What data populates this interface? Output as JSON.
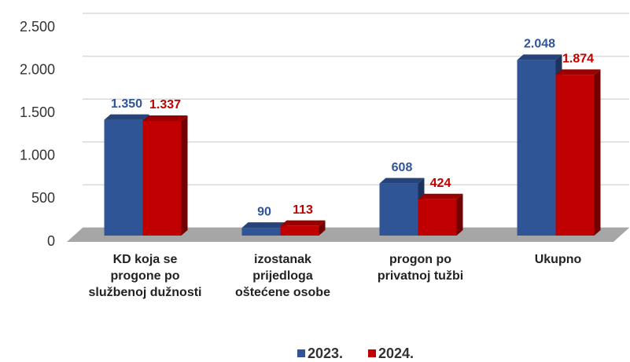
{
  "chart_data": {
    "type": "bar",
    "categories": [
      "KD koja se progone po službenoj dužnosti",
      "izostanak prijedloga oštećene osobe",
      "progon po privatnoj tužbi",
      "Ukupno"
    ],
    "series": [
      {
        "name": "2023.",
        "color": "#2f5597",
        "values": [
          1350,
          90,
          608,
          2048
        ],
        "value_labels": [
          "1.350",
          "90",
          "608",
          "2.048"
        ]
      },
      {
        "name": "2024.",
        "color": "#c00000",
        "values": [
          1337,
          113,
          424,
          1874
        ],
        "value_labels": [
          "1.337",
          "113",
          "424",
          "1.874"
        ]
      }
    ],
    "ylim": [
      0,
      2500
    ],
    "yticks": [
      0,
      500,
      {
        "value": 1000,
        "label": "1.000"
      },
      {
        "value": 1500,
        "label": "1.500"
      },
      {
        "value": 2000,
        "label": "2.000"
      },
      {
        "value": 2500,
        "label": "2.500"
      }
    ],
    "grid": true,
    "legend": "bottom"
  }
}
